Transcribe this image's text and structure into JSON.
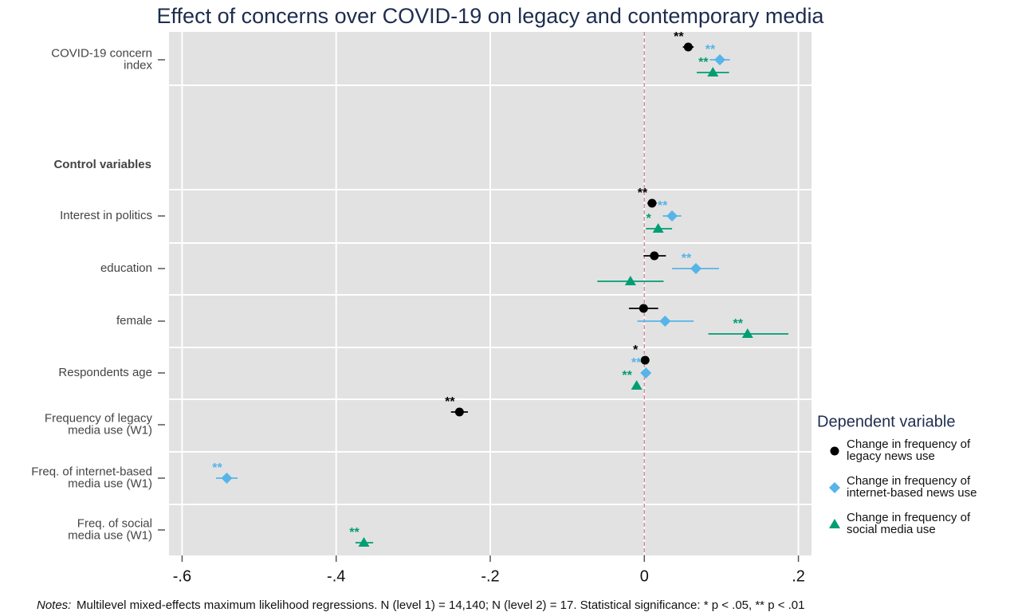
{
  "chart_data": {
    "type": "coefplot",
    "title": "Effect of concerns over COVID-19 on legacy and contemporary media",
    "categories": [
      [
        "COVID-19 concern",
        "index"
      ],
      null,
      [
        "Interest in politics"
      ],
      [
        "education"
      ],
      [
        "female"
      ],
      [
        "Respondents age"
      ],
      [
        "Frequency of legacy",
        "media use (W1)"
      ],
      [
        "Freq. of internet-based",
        "media use (W1)"
      ],
      [
        "Freq. of social",
        "media use (W1)"
      ]
    ],
    "section_label": "Control variables",
    "series": [
      {
        "name": "Change in frequency of legacy news use",
        "color": "#000000",
        "marker": "circle",
        "values": [
          0.057,
          null,
          0.01,
          0.013,
          -0.001,
          0.001,
          -0.24,
          null,
          null
        ],
        "ci_low": [
          0.05,
          null,
          0.004,
          -0.001,
          -0.02,
          -0.001,
          -0.251,
          null,
          null
        ],
        "ci_high": [
          0.064,
          null,
          0.016,
          0.028,
          0.018,
          0.003,
          -0.229,
          null,
          null
        ],
        "stars": [
          "**",
          null,
          "**",
          null,
          null,
          "*",
          "**",
          null,
          null
        ]
      },
      {
        "name": "Change in frequency of internet-based news use",
        "color": "#56b4e9",
        "marker": "diamond",
        "values": [
          0.098,
          null,
          0.036,
          0.067,
          0.027,
          0.002,
          null,
          -0.542,
          null
        ],
        "ci_low": [
          0.085,
          null,
          0.024,
          0.036,
          -0.009,
          0.0,
          null,
          -0.556,
          null
        ],
        "ci_high": [
          0.111,
          null,
          0.048,
          0.097,
          0.064,
          0.004,
          null,
          -0.528,
          null
        ],
        "stars": [
          "**",
          null,
          "**",
          "**",
          null,
          "**",
          null,
          "**",
          null
        ]
      },
      {
        "name": "Change in frequency of social media use",
        "color": "#009e73",
        "marker": "triangle",
        "values": [
          0.089,
          null,
          0.018,
          -0.018,
          0.134,
          -0.01,
          null,
          null,
          -0.364
        ],
        "ci_low": [
          0.068,
          null,
          0.002,
          -0.061,
          0.083,
          -0.014,
          null,
          null,
          -0.375
        ],
        "ci_high": [
          0.11,
          null,
          0.036,
          0.025,
          0.187,
          -0.006,
          null,
          null,
          -0.352
        ],
        "stars": [
          "**",
          null,
          "*",
          null,
          "**",
          "**",
          null,
          null,
          "**"
        ]
      }
    ],
    "xlim": [
      -0.617,
      0.217
    ],
    "xticks": [
      {
        "value": -0.6,
        "label": "-.6"
      },
      {
        "value": -0.4,
        "label": "-.4"
      },
      {
        "value": -0.2,
        "label": "-.2"
      },
      0,
      {
        "value": 0.2,
        "label": ".2"
      }
    ],
    "refline": 0,
    "grid": true,
    "legend_title": "Dependent variable",
    "legend_position": "right",
    "notes_label": "Notes:",
    "notes": "Multilevel mixed-effects maximum likelihood regressions. N (level 1) = 14,140; N (level 2) = 17. Statistical significance: * p < .05, ** p < .01"
  }
}
